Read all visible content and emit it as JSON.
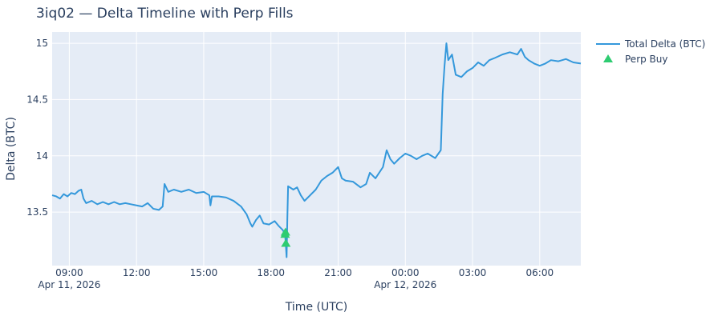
{
  "chart_data": {
    "type": "line",
    "title": "3iq02 — Delta Timeline with Perp Fills",
    "xlabel": "Time (UTC)",
    "ylabel": "Delta (BTC)",
    "x_range": [
      "2026-04-11T08:14",
      "2026-04-12T07:50"
    ],
    "ylim": [
      13.025,
      15.1
    ],
    "grid": true,
    "legend_placement": "top-right (outside plot)",
    "x_ticks": [
      {
        "t": "2026-04-11T09:00",
        "label": "09:00",
        "sublabel": "Apr 11, 2026"
      },
      {
        "t": "2026-04-11T12:00",
        "label": "12:00",
        "sublabel": ""
      },
      {
        "t": "2026-04-11T15:00",
        "label": "15:00",
        "sublabel": ""
      },
      {
        "t": "2026-04-11T18:00",
        "label": "18:00",
        "sublabel": ""
      },
      {
        "t": "2026-04-11T21:00",
        "label": "21:00",
        "sublabel": ""
      },
      {
        "t": "2026-04-12T00:00",
        "label": "00:00",
        "sublabel": "Apr 12, 2026"
      },
      {
        "t": "2026-04-12T03:00",
        "label": "03:00",
        "sublabel": ""
      },
      {
        "t": "2026-04-12T06:00",
        "label": "06:00",
        "sublabel": ""
      }
    ],
    "y_ticks": [
      {
        "v": 13.5,
        "label": "13.5"
      },
      {
        "v": 14,
        "label": "14"
      },
      {
        "v": 14.5,
        "label": "14.5"
      },
      {
        "v": 15,
        "label": "15"
      }
    ],
    "series": [
      {
        "name": "Total Delta (BTC)",
        "kind": "line",
        "color": "#3498db",
        "points": [
          [
            "2026-04-11T08:14",
            13.65
          ],
          [
            "2026-04-11T08:25",
            13.64
          ],
          [
            "2026-04-11T08:35",
            13.62
          ],
          [
            "2026-04-11T08:45",
            13.66
          ],
          [
            "2026-04-11T08:55",
            13.64
          ],
          [
            "2026-04-11T09:05",
            13.67
          ],
          [
            "2026-04-11T09:15",
            13.66
          ],
          [
            "2026-04-11T09:25",
            13.69
          ],
          [
            "2026-04-11T09:32",
            13.7
          ],
          [
            "2026-04-11T09:38",
            13.62
          ],
          [
            "2026-04-11T09:45",
            13.58
          ],
          [
            "2026-04-11T10:00",
            13.6
          ],
          [
            "2026-04-11T10:15",
            13.57
          ],
          [
            "2026-04-11T10:30",
            13.59
          ],
          [
            "2026-04-11T10:45",
            13.57
          ],
          [
            "2026-04-11T11:00",
            13.59
          ],
          [
            "2026-04-11T11:15",
            13.57
          ],
          [
            "2026-04-11T11:30",
            13.58
          ],
          [
            "2026-04-11T11:45",
            13.57
          ],
          [
            "2026-04-11T12:00",
            13.56
          ],
          [
            "2026-04-11T12:15",
            13.55
          ],
          [
            "2026-04-11T12:30",
            13.58
          ],
          [
            "2026-04-11T12:45",
            13.53
          ],
          [
            "2026-04-11T13:00",
            13.52
          ],
          [
            "2026-04-11T13:10",
            13.55
          ],
          [
            "2026-04-11T13:15",
            13.75
          ],
          [
            "2026-04-11T13:25",
            13.68
          ],
          [
            "2026-04-11T13:40",
            13.7
          ],
          [
            "2026-04-11T14:00",
            13.68
          ],
          [
            "2026-04-11T14:20",
            13.7
          ],
          [
            "2026-04-11T14:40",
            13.67
          ],
          [
            "2026-04-11T15:00",
            13.68
          ],
          [
            "2026-04-11T15:15",
            13.65
          ],
          [
            "2026-04-11T15:18",
            13.56
          ],
          [
            "2026-04-11T15:22",
            13.64
          ],
          [
            "2026-04-11T15:40",
            13.64
          ],
          [
            "2026-04-11T16:00",
            13.63
          ],
          [
            "2026-04-11T16:20",
            13.6
          ],
          [
            "2026-04-11T16:40",
            13.55
          ],
          [
            "2026-04-11T16:55",
            13.48
          ],
          [
            "2026-04-11T17:05",
            13.4
          ],
          [
            "2026-04-11T17:10",
            13.37
          ],
          [
            "2026-04-11T17:20",
            13.43
          ],
          [
            "2026-04-11T17:30",
            13.47
          ],
          [
            "2026-04-11T17:40",
            13.4
          ],
          [
            "2026-04-11T17:55",
            13.39
          ],
          [
            "2026-04-11T18:10",
            13.42
          ],
          [
            "2026-04-11T18:20",
            13.38
          ],
          [
            "2026-04-11T18:32",
            13.34
          ],
          [
            "2026-04-11T18:38",
            13.3
          ],
          [
            "2026-04-11T18:42",
            13.1
          ],
          [
            "2026-04-11T18:44",
            13.45
          ],
          [
            "2026-04-11T18:46",
            13.73
          ],
          [
            "2026-04-11T19:00",
            13.7
          ],
          [
            "2026-04-11T19:10",
            13.72
          ],
          [
            "2026-04-11T19:20",
            13.65
          ],
          [
            "2026-04-11T19:30",
            13.6
          ],
          [
            "2026-04-11T19:45",
            13.65
          ],
          [
            "2026-04-11T20:00",
            13.7
          ],
          [
            "2026-04-11T20:15",
            13.78
          ],
          [
            "2026-04-11T20:30",
            13.82
          ],
          [
            "2026-04-11T20:45",
            13.85
          ],
          [
            "2026-04-11T21:00",
            13.9
          ],
          [
            "2026-04-11T21:10",
            13.8
          ],
          [
            "2026-04-11T21:20",
            13.78
          ],
          [
            "2026-04-11T21:40",
            13.77
          ],
          [
            "2026-04-11T22:00",
            13.72
          ],
          [
            "2026-04-11T22:15",
            13.75
          ],
          [
            "2026-04-11T22:25",
            13.85
          ],
          [
            "2026-04-11T22:40",
            13.8
          ],
          [
            "2026-04-11T23:00",
            13.9
          ],
          [
            "2026-04-11T23:10",
            14.05
          ],
          [
            "2026-04-11T23:20",
            13.97
          ],
          [
            "2026-04-11T23:30",
            13.93
          ],
          [
            "2026-04-11T23:45",
            13.98
          ],
          [
            "2026-04-12T00:00",
            14.02
          ],
          [
            "2026-04-12T00:15",
            14.0
          ],
          [
            "2026-04-12T00:30",
            13.97
          ],
          [
            "2026-04-12T00:45",
            14.0
          ],
          [
            "2026-04-12T01:00",
            14.02
          ],
          [
            "2026-04-12T01:20",
            13.98
          ],
          [
            "2026-04-12T01:35",
            14.05
          ],
          [
            "2026-04-12T01:40",
            14.55
          ],
          [
            "2026-04-12T01:45",
            14.8
          ],
          [
            "2026-04-12T01:50",
            15.0
          ],
          [
            "2026-04-12T01:55",
            14.85
          ],
          [
            "2026-04-12T02:05",
            14.9
          ],
          [
            "2026-04-12T02:15",
            14.72
          ],
          [
            "2026-04-12T02:30",
            14.7
          ],
          [
            "2026-04-12T02:45",
            14.75
          ],
          [
            "2026-04-12T03:00",
            14.78
          ],
          [
            "2026-04-12T03:15",
            14.83
          ],
          [
            "2026-04-12T03:30",
            14.8
          ],
          [
            "2026-04-12T03:45",
            14.85
          ],
          [
            "2026-04-12T04:00",
            14.87
          ],
          [
            "2026-04-12T04:20",
            14.9
          ],
          [
            "2026-04-12T04:40",
            14.92
          ],
          [
            "2026-04-12T05:00",
            14.9
          ],
          [
            "2026-04-12T05:10",
            14.95
          ],
          [
            "2026-04-12T05:20",
            14.88
          ],
          [
            "2026-04-12T05:30",
            14.85
          ],
          [
            "2026-04-12T05:45",
            14.82
          ],
          [
            "2026-04-12T06:00",
            14.8
          ],
          [
            "2026-04-12T06:15",
            14.82
          ],
          [
            "2026-04-12T06:30",
            14.85
          ],
          [
            "2026-04-12T06:50",
            14.84
          ],
          [
            "2026-04-12T07:10",
            14.86
          ],
          [
            "2026-04-12T07:30",
            14.83
          ],
          [
            "2026-04-12T07:50",
            14.82
          ]
        ]
      },
      {
        "name": "Perp Buy",
        "kind": "markers",
        "color": "#2ecc71",
        "points": [
          [
            "2026-04-11T18:38",
            13.3
          ],
          [
            "2026-04-11T18:39",
            13.32
          ],
          [
            "2026-04-11T18:40",
            13.22
          ]
        ]
      }
    ]
  }
}
